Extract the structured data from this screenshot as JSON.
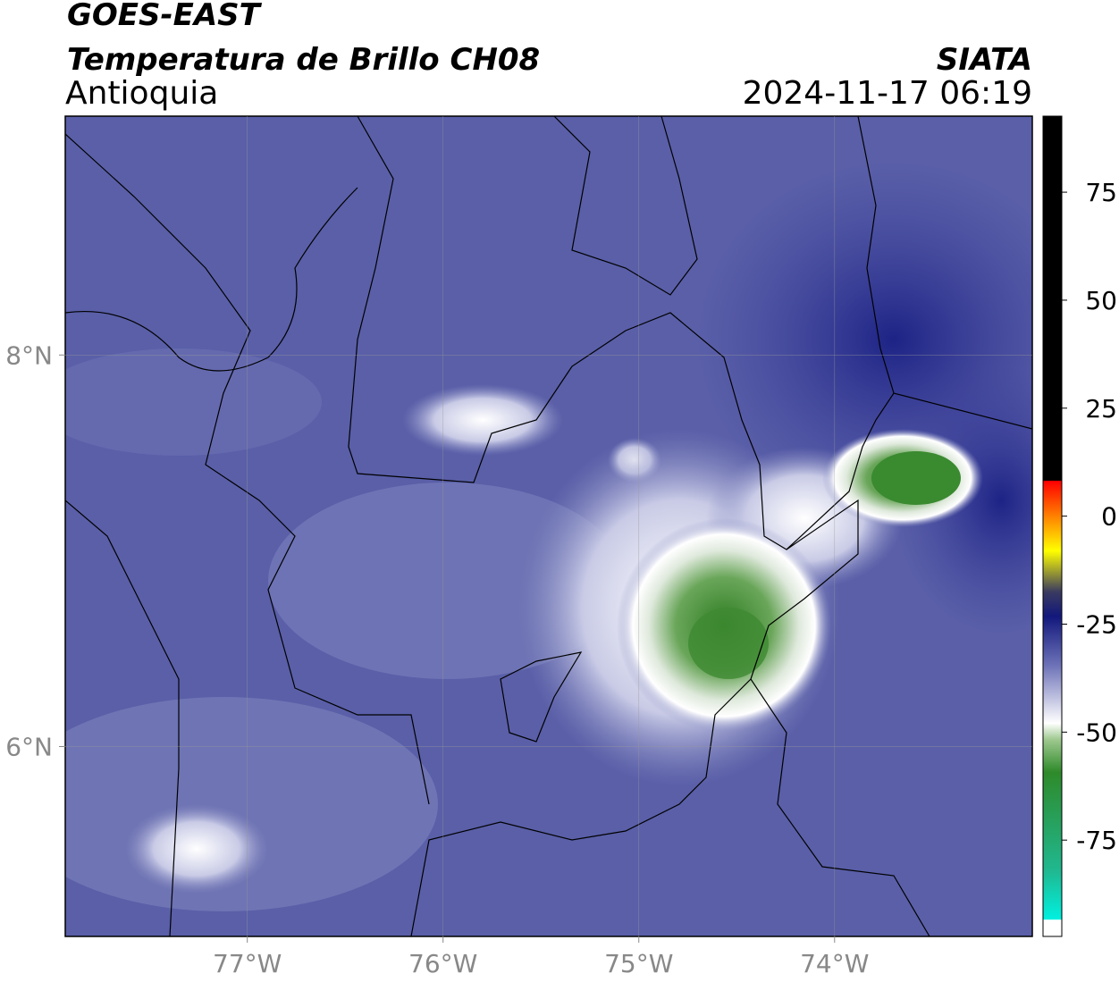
{
  "header": {
    "source": "GOES-EAST",
    "product": "Temperatura de Brillo CH08",
    "region": "Antioquia",
    "agency": "SIATA",
    "datetime": "2024-11-17 06:19"
  },
  "map": {
    "xlim": [
      -77.93,
      -72.99
    ],
    "ylim": [
      5.03,
      9.22
    ],
    "xticks": [
      {
        "value": -77,
        "label": "77°W"
      },
      {
        "value": -76,
        "label": "76°W"
      },
      {
        "value": -75,
        "label": "75°W"
      },
      {
        "value": -74,
        "label": "74°W"
      }
    ],
    "yticks": [
      {
        "value": 8,
        "label": "8°N"
      },
      {
        "value": 6,
        "label": "6°N"
      }
    ],
    "grid": true
  },
  "colorbar": {
    "lim": [
      -97.3,
      92.6
    ],
    "ticks": [
      75,
      50,
      25,
      0,
      -25,
      -50,
      -75
    ]
  }
}
